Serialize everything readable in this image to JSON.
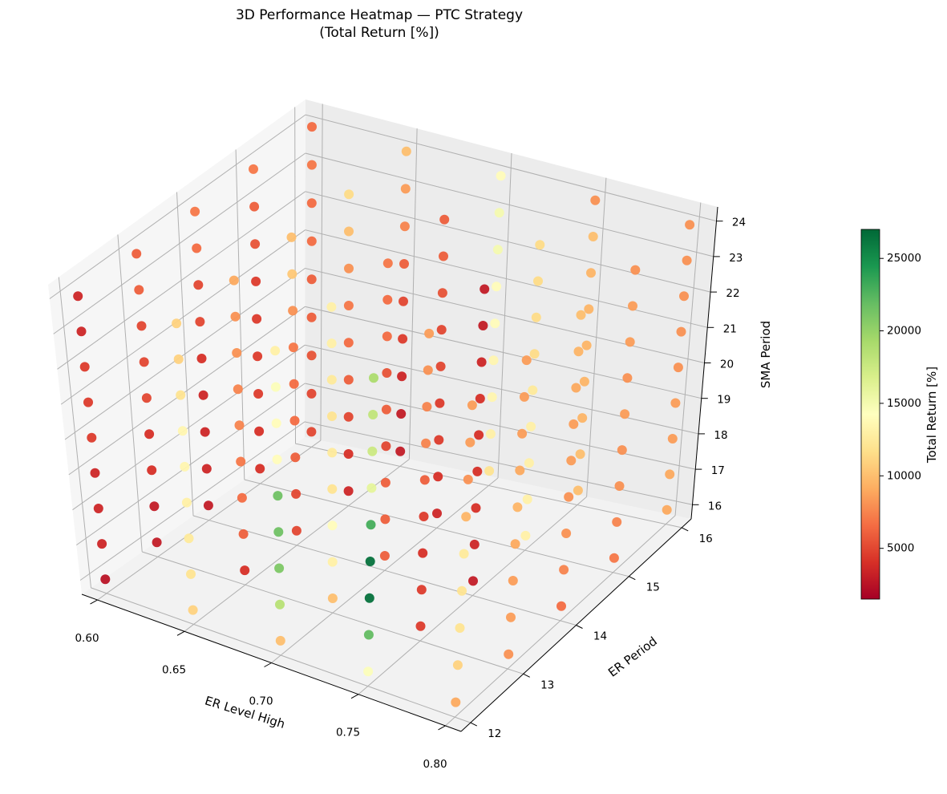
{
  "chart_data": {
    "type": "scatter",
    "subtype": "3d-scatter",
    "title": "3D Performance Heatmap — PTC Strategy",
    "subtitle": "(Total Return [%])",
    "xlabel": "ER Level High",
    "ylabel": "ER Period",
    "zlabel": "SMA Period",
    "xlim": [
      0.6,
      0.8
    ],
    "ylim": [
      12,
      16
    ],
    "zlim": [
      16,
      24
    ],
    "x_ticks": [
      "0.60",
      "0.65",
      "0.70",
      "0.75",
      "0.80"
    ],
    "y_ticks": [
      "12",
      "13",
      "14",
      "15",
      "16"
    ],
    "z_ticks": [
      "16",
      "17",
      "18",
      "19",
      "20",
      "21",
      "22",
      "23",
      "24"
    ],
    "colorbar": {
      "label": "Total Return [%]",
      "range": [
        1500,
        27000
      ],
      "ticks": [
        "5000",
        "10000",
        "15000",
        "20000",
        "25000"
      ],
      "colormap": "RdYlGn"
    },
    "dimensions": {
      "x_values": [
        0.6,
        0.65,
        0.7,
        0.75,
        0.8
      ],
      "y_values": [
        12,
        13,
        14,
        15,
        16
      ],
      "z_values": [
        16,
        17,
        18,
        19,
        20,
        21,
        22,
        23,
        24
      ]
    },
    "returns_by_er_level_and_er_period": {
      "note": "values [x][y][z]",
      "values": [
        [
          [
            2500,
            3500,
            3500,
            3500,
            4500,
            4500,
            4500,
            3500,
            3500
          ],
          [
            3000,
            3000,
            4000,
            4000,
            5000,
            5000,
            5000,
            6000,
            6000
          ],
          [
            3000,
            3500,
            3500,
            3500,
            4000,
            5000,
            5000,
            6500,
            7000
          ],
          [
            4000,
            4000,
            4500,
            4500,
            4500,
            4500,
            5500,
            6000,
            7000
          ],
          [
            5000,
            5000,
            5500,
            6000,
            6000,
            6500,
            6500,
            7000,
            6500
          ]
        ],
        [
          [
            11000,
            12000,
            12500,
            13000,
            13500,
            13500,
            12000,
            11000,
            11000
          ],
          [
            4000,
            6000,
            6500,
            7000,
            7500,
            7500,
            8000,
            8000,
            9000
          ],
          [
            5000,
            5000,
            6000,
            6500,
            6500,
            7000,
            8000,
            10500,
            10000
          ],
          [
            3500,
            4000,
            5000,
            6000,
            6500,
            7000,
            8000,
            10000,
            11500
          ],
          [
            3000,
            3000,
            3500,
            4500,
            5000,
            6000,
            7500,
            8500,
            10000
          ]
        ],
        [
          [
            10000,
            18500,
            21000,
            21500,
            21500,
            14000,
            14000,
            14500,
            13000
          ],
          [
            10000,
            13000,
            14000,
            12000,
            12500,
            12000,
            12500,
            13000,
            13000
          ],
          [
            6000,
            6000,
            6000,
            5000,
            6000,
            5500,
            6500,
            6500,
            7000
          ],
          [
            3500,
            4000,
            4500,
            4500,
            5000,
            5000,
            5500,
            6000,
            6000
          ],
          [
            12000,
            13000,
            13500,
            13500,
            14000,
            14000,
            15000,
            15000,
            14000
          ]
        ],
        [
          [
            14500,
            22000,
            26500,
            26500,
            23000,
            16000,
            17500,
            18000,
            19000
          ],
          [
            4500,
            4500,
            4000,
            4500,
            6000,
            7500,
            7500,
            8000,
            8500
          ],
          [
            3000,
            3500,
            4000,
            4000,
            4000,
            4000,
            3500,
            3000,
            3000
          ],
          [
            13000,
            13000,
            13000,
            13000,
            12500,
            11500,
            11500,
            11500,
            11500
          ],
          [
            10000,
            10000,
            9500,
            9500,
            9500,
            9500,
            9500,
            10000,
            8000
          ]
        ],
        [
          [
            9000,
            11000,
            12000,
            12000,
            12500,
            9500,
            8000,
            8500,
            8500
          ],
          [
            8000,
            8500,
            8500,
            9000,
            9500,
            9000,
            8500,
            8500,
            8500
          ],
          [
            6500,
            7500,
            8000,
            8000,
            8500,
            8500,
            9000,
            9500,
            10000
          ],
          [
            7000,
            7500,
            8000,
            8000,
            8500,
            8000,
            8500,
            8500,
            8000
          ],
          [
            9000,
            9000,
            8500,
            8500,
            8000,
            8000,
            8000,
            8000,
            8000
          ]
        ]
      ]
    }
  },
  "colors": {
    "low": "#a50026",
    "mid": "#ffffbf",
    "high": "#006837",
    "pane": "#f2f2f2",
    "grid": "#b0b0b0"
  }
}
